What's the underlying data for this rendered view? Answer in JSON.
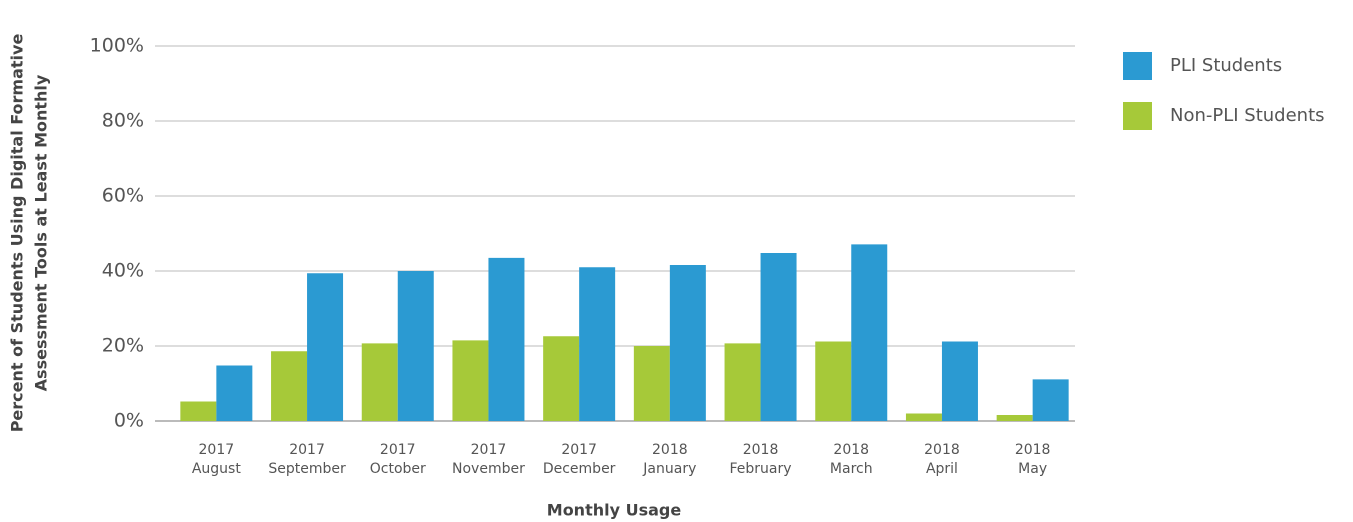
{
  "chart_data": {
    "type": "bar",
    "ylabel": [
      "Percent of Students Using Digital Formative",
      "Assessment Tools at Least Monthly"
    ],
    "xlabel": "Monthly Usage",
    "categories": [
      [
        "2017",
        "August"
      ],
      [
        "2017",
        "September"
      ],
      [
        "2017",
        "October"
      ],
      [
        "2017",
        "November"
      ],
      [
        "2017",
        "December"
      ],
      [
        "2018",
        "January"
      ],
      [
        "2018",
        "February"
      ],
      [
        "2018",
        "March"
      ],
      [
        "2018",
        "April"
      ],
      [
        "2018",
        "May"
      ]
    ],
    "series": [
      {
        "name": "Non-PLI Students",
        "color": "#a6c939",
        "values": [
          5.2,
          18.6,
          20.7,
          21.5,
          22.6,
          20,
          20.7,
          21.2,
          2,
          1.6
        ]
      },
      {
        "name": "PLI Students",
        "color": "#2b9ad2",
        "values": [
          14.8,
          39.4,
          40,
          43.5,
          41,
          41.6,
          44.8,
          47.1,
          21.2,
          11.1
        ]
      }
    ],
    "legend_order": [
      1,
      0
    ],
    "ylim": [
      0,
      100
    ],
    "yticks": [
      {
        "value": 0,
        "label": "0%"
      },
      {
        "value": 20,
        "label": "20%"
      },
      {
        "value": 40,
        "label": "40%"
      },
      {
        "value": 60,
        "label": "60%"
      },
      {
        "value": 80,
        "label": "80%"
      },
      {
        "value": 100,
        "label": "100%"
      }
    ],
    "grid": true
  }
}
